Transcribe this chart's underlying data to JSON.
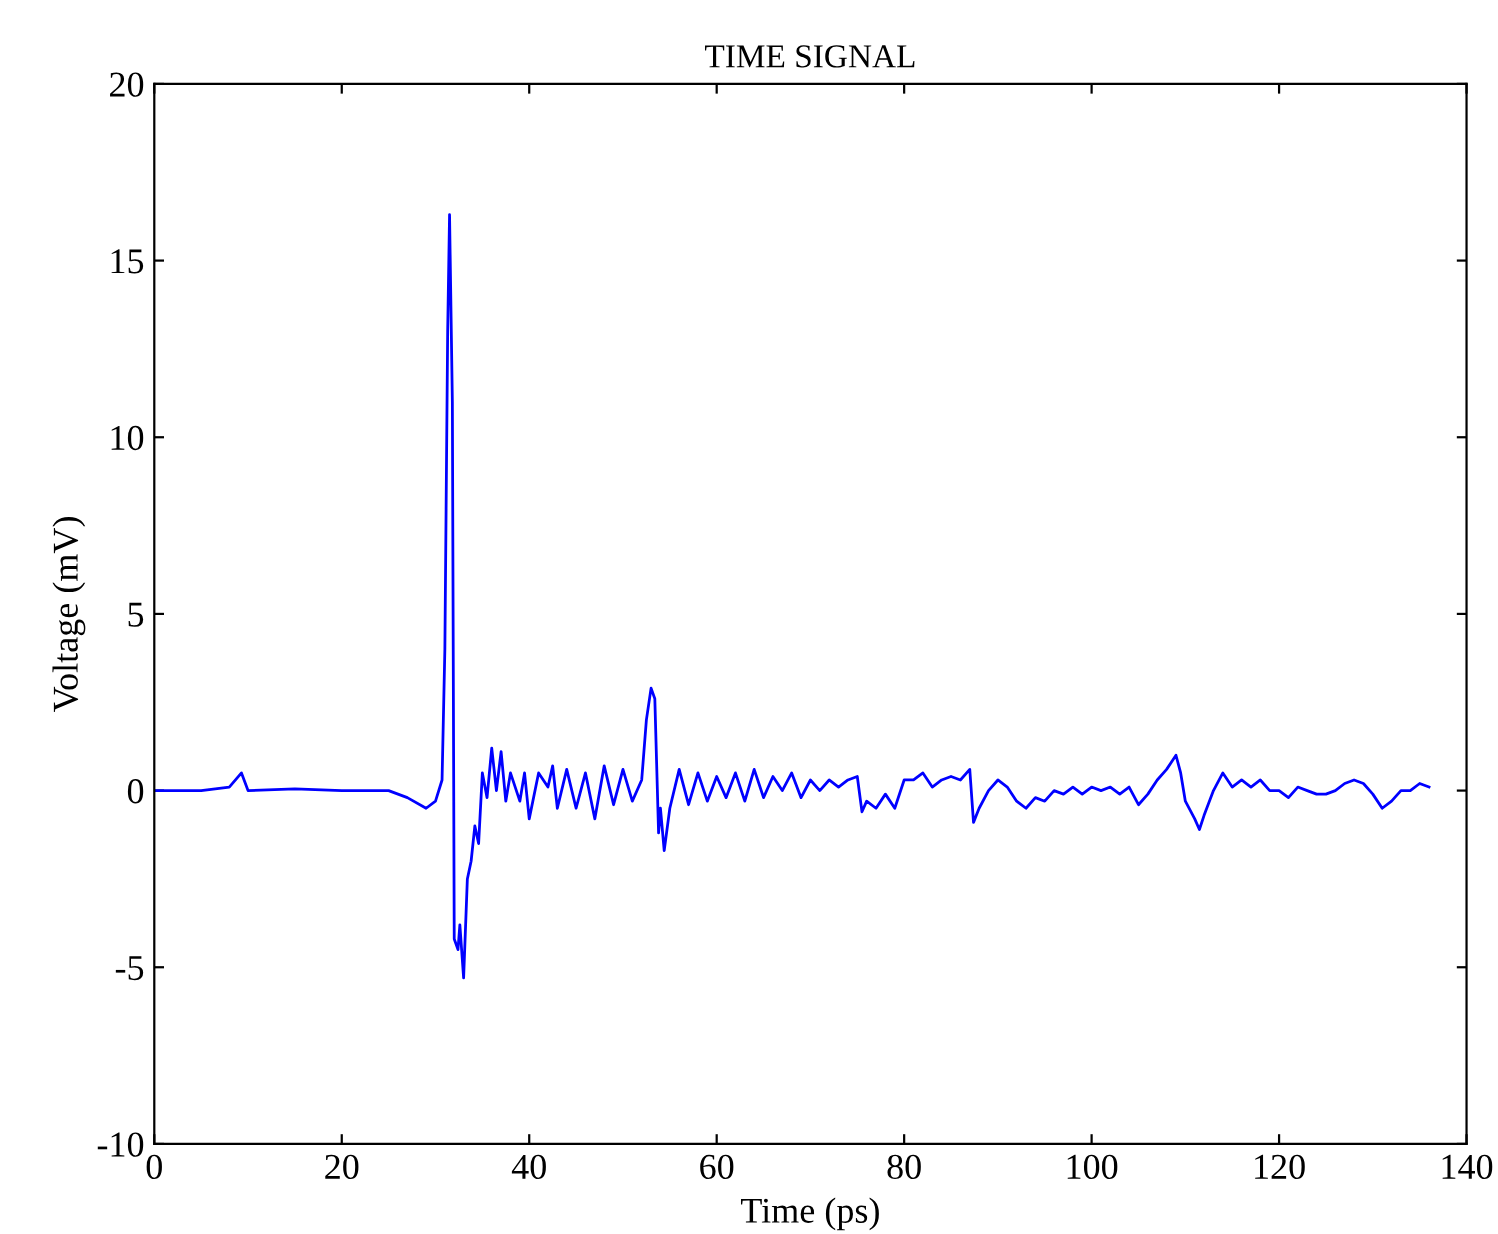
{
  "chart_data": {
    "type": "line",
    "title": "TIME SIGNAL",
    "xlabel": "Time (ps)",
    "ylabel": "Voltage (mV)",
    "x": [
      0,
      5,
      8,
      9.3,
      10,
      15,
      20,
      25,
      27,
      29,
      30,
      30.7,
      31,
      31.3,
      31.5,
      31.8,
      32,
      32.4,
      32.6,
      33,
      33.4,
      33.8,
      34.2,
      34.6,
      35,
      35.5,
      36,
      36.5,
      37,
      37.5,
      38,
      39,
      39.5,
      40,
      41,
      42,
      42.5,
      43,
      44,
      45,
      46,
      47,
      48,
      49,
      50,
      51,
      52,
      52.5,
      53,
      53.4,
      53.8,
      54,
      54.4,
      55,
      56,
      57,
      58,
      59,
      60,
      61,
      62,
      63,
      64,
      65,
      66,
      67,
      68,
      69,
      70,
      71,
      72,
      73,
      74,
      75,
      75.5,
      76,
      77,
      78,
      79,
      80,
      81,
      82,
      83,
      84,
      85,
      86,
      87,
      87.4,
      88,
      89,
      90,
      91,
      92,
      93,
      94,
      95,
      96,
      97,
      98,
      99,
      100,
      101,
      102,
      103,
      104,
      105,
      106,
      107,
      108,
      109,
      109.5,
      110,
      111,
      111.5,
      112,
      113,
      114,
      115,
      116,
      117,
      118,
      119,
      120,
      121,
      122,
      123,
      124,
      125,
      126,
      127,
      128,
      129,
      130,
      131,
      132,
      133,
      134,
      135,
      136
    ],
    "series": [
      {
        "color": "#0000ff",
        "values": [
          0,
          0,
          0.1,
          0.5,
          0,
          0.05,
          0,
          0,
          -0.2,
          -0.5,
          -0.3,
          0.3,
          4,
          13,
          16.3,
          11,
          -4.2,
          -4.5,
          -3.8,
          -5.3,
          -2.5,
          -2,
          -1,
          -1.5,
          0.5,
          -0.2,
          1.2,
          0,
          1.1,
          -0.3,
          0.5,
          -0.3,
          0.5,
          -0.8,
          0.5,
          0.1,
          0.7,
          -0.5,
          0.6,
          -0.5,
          0.5,
          -0.8,
          0.7,
          -0.4,
          0.6,
          -0.3,
          0.3,
          2.0,
          2.9,
          2.6,
          -1.2,
          -0.5,
          -1.7,
          -0.5,
          0.6,
          -0.4,
          0.5,
          -0.3,
          0.4,
          -0.2,
          0.5,
          -0.3,
          0.6,
          -0.2,
          0.4,
          0,
          0.5,
          -0.2,
          0.3,
          0,
          0.3,
          0.1,
          0.3,
          0.4,
          -0.6,
          -0.3,
          -0.5,
          -0.1,
          -0.5,
          0.3,
          0.3,
          0.5,
          0.1,
          0.3,
          0.4,
          0.3,
          0.6,
          -0.9,
          -0.5,
          0,
          0.3,
          0.1,
          -0.3,
          -0.5,
          -0.2,
          -0.3,
          0,
          -0.1,
          0.1,
          -0.1,
          0.1,
          0,
          0.1,
          -0.1,
          0.1,
          -0.4,
          -0.1,
          0.3,
          0.6,
          1.0,
          0.5,
          -0.3,
          -0.8,
          -1.1,
          -0.7,
          0,
          0.5,
          0.1,
          0.3,
          0.1,
          0.3,
          0,
          0,
          -0.2,
          0.1,
          0,
          -0.1,
          -0.1,
          0,
          0.2,
          0.3,
          0.2,
          -0.1,
          -0.5,
          -0.3,
          0,
          0,
          0.2,
          0.1
        ]
      }
    ],
    "xlim": [
      0,
      140
    ],
    "xticks": [
      0,
      20,
      40,
      60,
      80,
      100,
      120,
      140
    ],
    "ylim": [
      -10,
      20
    ],
    "yticks": [
      -10,
      -5,
      0,
      5,
      10,
      15,
      20
    ],
    "grid": false,
    "legend": false,
    "marker": "none",
    "line_style": "solid"
  }
}
